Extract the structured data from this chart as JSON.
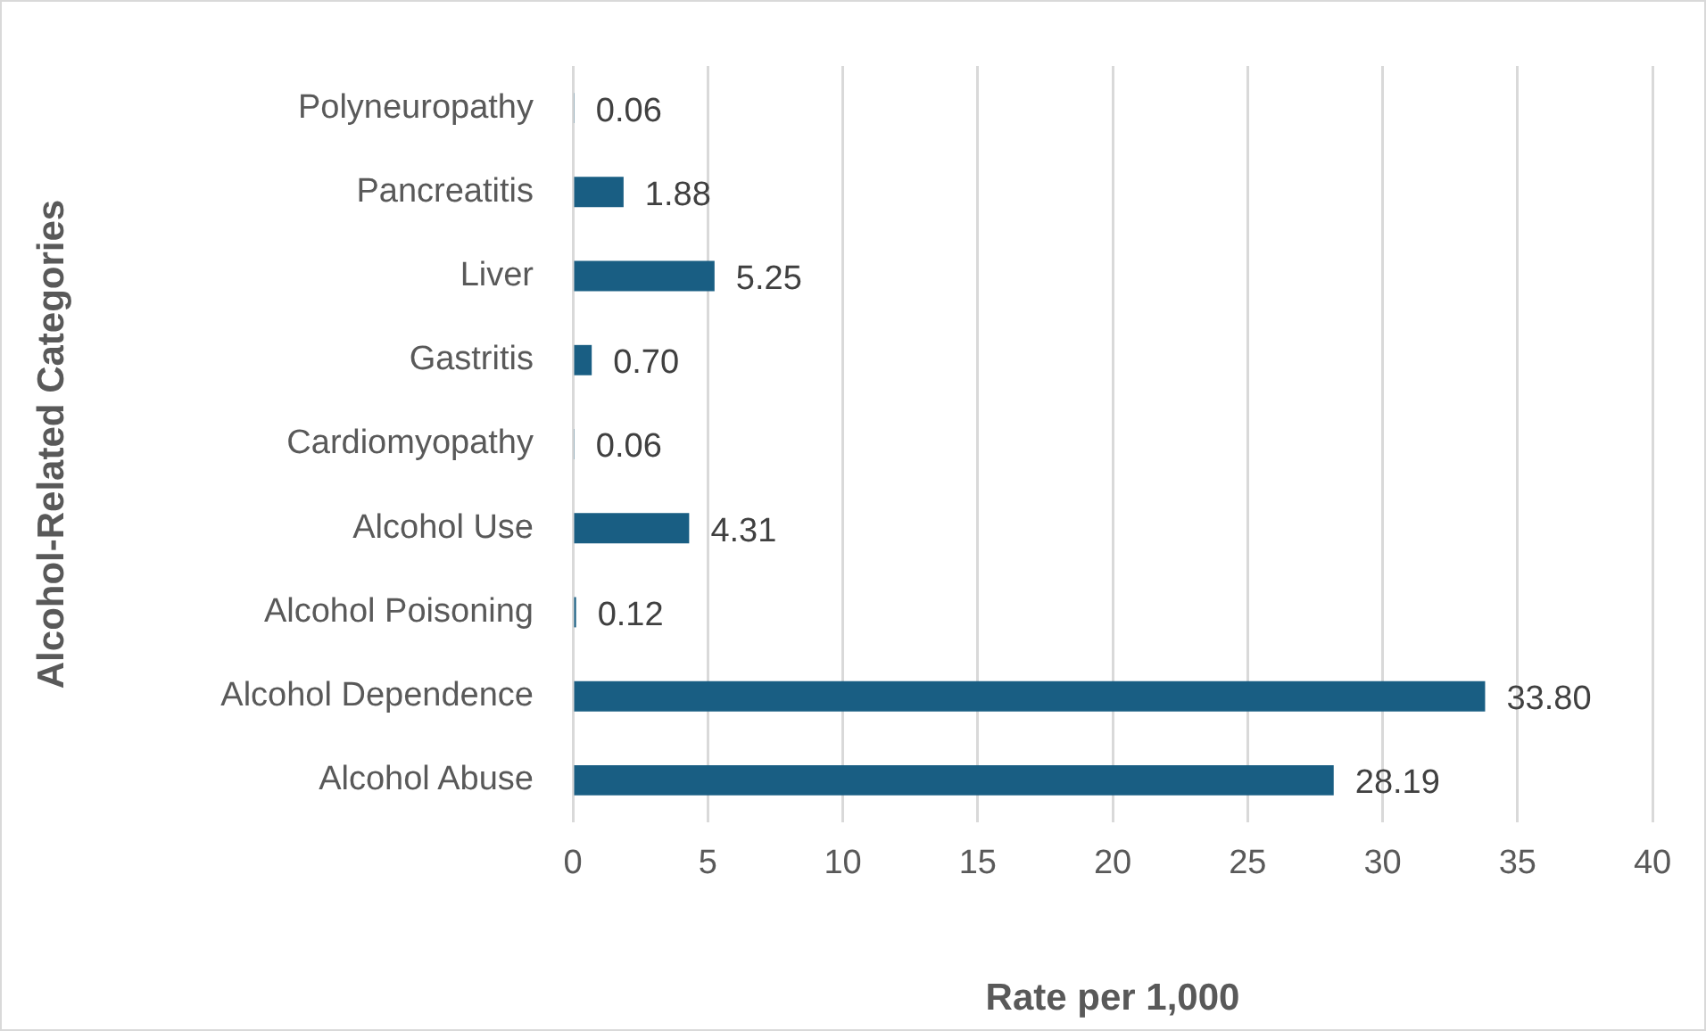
{
  "chart_data": {
    "type": "bar",
    "orientation": "horizontal",
    "ylabel": "Alcohol-Related Categories",
    "xlabel": "Rate per 1,000",
    "categories": [
      "Polyneuropathy",
      "Pancreatitis",
      "Liver",
      "Gastritis",
      "Cardiomyopathy",
      "Alcohol Use",
      "Alcohol Poisoning",
      "Alcohol Dependence",
      "Alcohol Abuse"
    ],
    "values": [
      0.06,
      1.88,
      5.25,
      0.7,
      0.06,
      4.31,
      0.12,
      33.8,
      28.19
    ],
    "value_labels": [
      "0.06",
      "1.88",
      "5.25",
      "0.70",
      "0.06",
      "4.31",
      "0.12",
      "33.80",
      "28.19"
    ],
    "color": "#195e83",
    "xlim": [
      0,
      40
    ],
    "xticks": [
      0,
      5,
      10,
      15,
      20,
      25,
      30,
      35,
      40
    ],
    "grid": "x",
    "legend": false
  }
}
